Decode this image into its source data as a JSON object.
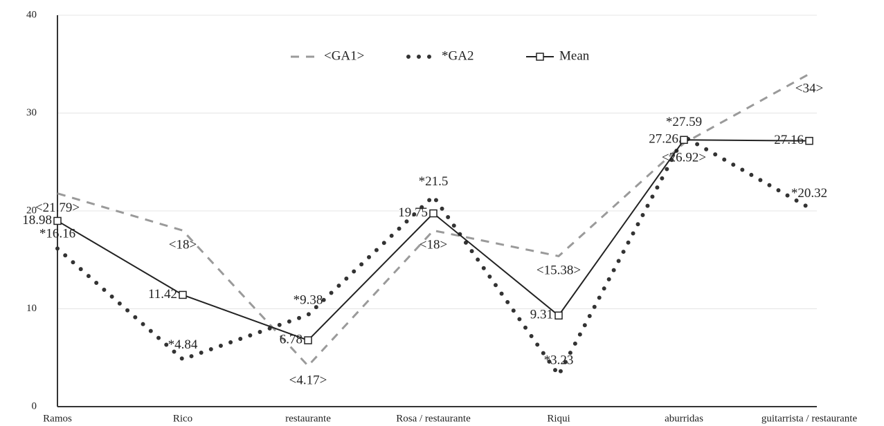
{
  "chart_data": {
    "type": "line",
    "categories": [
      "Ramos",
      "Rico",
      "restaurante",
      "Rosa / restaurante",
      "Riqui",
      "aburridas",
      "guitarrista / restaurante"
    ],
    "series": [
      {
        "name": "<GA1>",
        "color": "#9a9a9a",
        "style": "dashed",
        "values": [
          21.79,
          18,
          4.17,
          18,
          15.38,
          26.92,
          34
        ],
        "value_labels": [
          "<21.79>",
          "<18>",
          "<4.17>",
          "<18>",
          "<15.38>",
          "<26.92>",
          "<34>"
        ]
      },
      {
        "name": "*GA2",
        "color": "#333333",
        "style": "dotted",
        "values": [
          16.16,
          4.84,
          9.38,
          21.5,
          3.23,
          27.59,
          20.32
        ],
        "value_labels": [
          "*16.16",
          "*4.84",
          "*9.38",
          "*21.5",
          "*3.23",
          "*27.59",
          "*20.32"
        ]
      },
      {
        "name": "Mean",
        "color": "#222222",
        "style": "solid",
        "values": [
          18.98,
          11.42,
          6.78,
          19.75,
          9.31,
          27.26,
          27.16
        ]
      }
    ],
    "ylim": [
      0,
      40
    ],
    "yticks": [
      0,
      10,
      20,
      30,
      40
    ],
    "grid": true
  }
}
